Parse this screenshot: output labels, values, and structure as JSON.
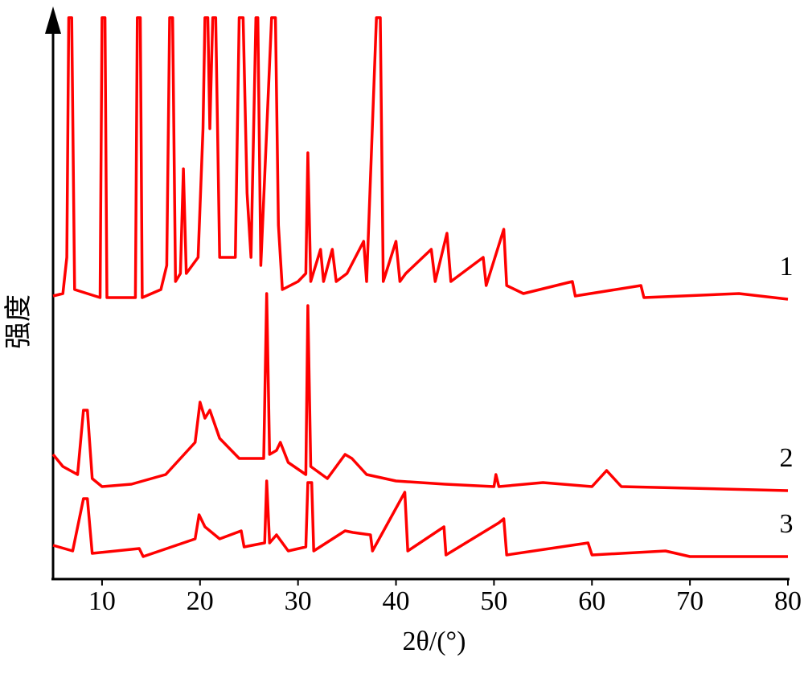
{
  "chart_data": {
    "type": "line",
    "x_label": "2θ/(°)",
    "y_label": "强度",
    "xlim": [
      5,
      80
    ],
    "ylim": [
      0,
      698
    ],
    "xticks": [
      10,
      20,
      30,
      40,
      50,
      60,
      70,
      80
    ],
    "series": [
      {
        "name": "1",
        "color": "#ff0000",
        "x": [
          5,
          6.0,
          6.4,
          6.6,
          6.9,
          7.2,
          9.8,
          10.0,
          10.3,
          10.5,
          13.4,
          13.6,
          13.9,
          14.1,
          16.0,
          16.6,
          16.9,
          17.2,
          17.5,
          18.0,
          18.3,
          18.6,
          19.8,
          20.3,
          20.5,
          20.8,
          21.0,
          21.3,
          21.6,
          22.0,
          23.6,
          24.0,
          24.4,
          24.8,
          25.2,
          25.7,
          25.9,
          26.2,
          27.3,
          27.7,
          28.0,
          28.4,
          30.0,
          30.8,
          31.0,
          31.3,
          32.3,
          32.6,
          33.5,
          33.9,
          35.0,
          36.7,
          37.0,
          38.0,
          38.4,
          38.7,
          40.0,
          40.4,
          41.0,
          43.6,
          44.0,
          45.2,
          45.6,
          48.9,
          49.2,
          51.0,
          51.3,
          53,
          58,
          58.3,
          65,
          65.3,
          75,
          80
        ],
        "values": [
          352,
          355,
          400,
          698,
          698,
          360,
          350,
          698,
          698,
          350,
          350,
          698,
          698,
          350,
          360,
          390,
          698,
          698,
          370,
          380,
          510,
          380,
          400,
          560,
          698,
          698,
          560,
          698,
          698,
          400,
          400,
          698,
          698,
          480,
          400,
          698,
          698,
          390,
          698,
          698,
          440,
          360,
          370,
          380,
          530,
          370,
          410,
          370,
          410,
          370,
          380,
          420,
          370,
          698,
          698,
          370,
          420,
          370,
          380,
          410,
          370,
          430,
          370,
          400,
          365,
          435,
          365,
          355,
          370,
          352,
          365,
          350,
          355,
          348
        ]
      },
      {
        "name": "2",
        "color": "#ff0000",
        "x": [
          5,
          6,
          7.5,
          8.1,
          8.5,
          9,
          10,
          13,
          16.5,
          19.5,
          20,
          20.5,
          21,
          22,
          24,
          26.5,
          26.8,
          27.1,
          27.8,
          28.2,
          29,
          30.8,
          31.0,
          31.3,
          33,
          34.8,
          35.5,
          37,
          40,
          45,
          50,
          50.2,
          50.5,
          55,
          60,
          61.5,
          63,
          70,
          80
        ],
        "values": [
          155,
          140,
          130,
          210,
          210,
          125,
          115,
          118,
          130,
          170,
          220,
          200,
          210,
          175,
          150,
          150,
          355,
          155,
          160,
          170,
          145,
          130,
          340,
          140,
          125,
          155,
          150,
          130,
          122,
          118,
          115,
          130,
          115,
          120,
          115,
          135,
          115,
          113,
          110
        ]
      },
      {
        "name": "3",
        "color": "#ff0000",
        "x": [
          5,
          7,
          8.1,
          8.5,
          9,
          13.8,
          14.2,
          19.5,
          19.9,
          20.5,
          22,
          24.2,
          24.5,
          26.6,
          26.8,
          27.1,
          27.8,
          29,
          30.8,
          31.0,
          31.4,
          31.6,
          34.8,
          35.6,
          37.4,
          37.6,
          40.9,
          41.2,
          44.9,
          45.1,
          50.5,
          51.0,
          51.3,
          59.6,
          60,
          67.5,
          70,
          80
        ],
        "values": [
          42,
          35,
          100,
          100,
          32,
          38,
          28,
          50,
          80,
          65,
          50,
          60,
          40,
          45,
          122,
          45,
          55,
          35,
          40,
          120,
          120,
          35,
          60,
          58,
          55,
          35,
          108,
          35,
          65,
          30,
          70,
          75,
          30,
          45,
          30,
          35,
          28,
          28
        ]
      }
    ]
  }
}
